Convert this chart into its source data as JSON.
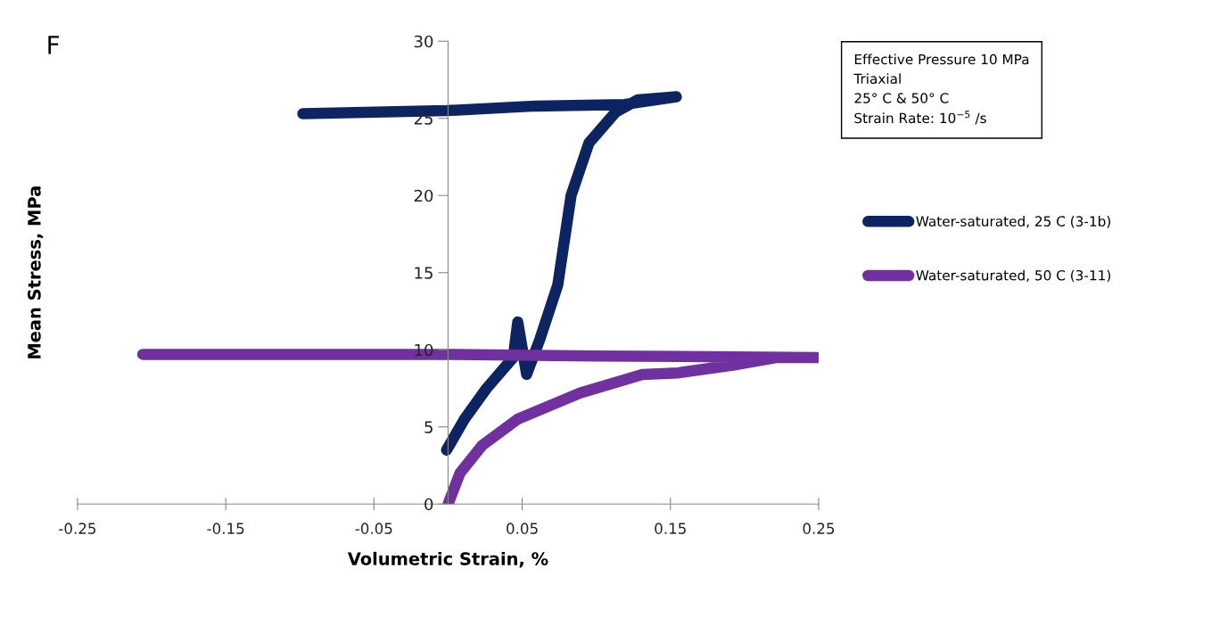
{
  "chart_data": {
    "type": "line",
    "xlabel": "Volumetric Strain, %",
    "ylabel": "Mean Stress, MPa",
    "xlim": [
      -0.25,
      0.25
    ],
    "xticks": [
      -0.25,
      -0.15,
      -0.05,
      0.05,
      0.15,
      0.25
    ],
    "ylim": [
      0,
      30
    ],
    "yticks": [
      0,
      5,
      10,
      15,
      20,
      25,
      30
    ],
    "grid": false,
    "legend": "right",
    "marker": "none",
    "line_style": "solid",
    "annotations": [
      "F",
      "Effective Pressure 10 MPa\nTriaxial\n25° C & 50° C\nStrain Rate: 10$^{−5}$ /s"
    ],
    "series": [
      {
        "name": "Water-saturated, 25 C (3-1b)",
        "color": "#0d2462",
        "x": [
          -0.001,
          0.011,
          0.026,
          0.044,
          0.047,
          0.053,
          0.062,
          0.074,
          0.083,
          0.095,
          0.113,
          0.128,
          0.154,
          0.119,
          0.059,
          -0.001,
          -0.098
        ],
        "values": [
          3.5,
          5.5,
          7.5,
          9.5,
          11.8,
          8.4,
          10.7,
          14.2,
          20,
          23.4,
          25.4,
          26.2,
          26.4,
          25.9,
          25.8,
          25.5,
          25.3
        ]
      },
      {
        "name": "Water-saturated, 50 C (3-11)",
        "color": "#7030a0",
        "x": [
          0.0,
          0.008,
          0.023,
          0.047,
          0.089,
          0.131,
          0.155,
          0.192,
          0.222,
          0.249,
          0.1,
          0.0,
          -0.1,
          -0.206
        ],
        "values": [
          0,
          2,
          3.8,
          5.5,
          7.2,
          8.4,
          8.5,
          9.0,
          9.5,
          9.5,
          9.6,
          9.7,
          9.7,
          9.7
        ]
      }
    ]
  }
}
